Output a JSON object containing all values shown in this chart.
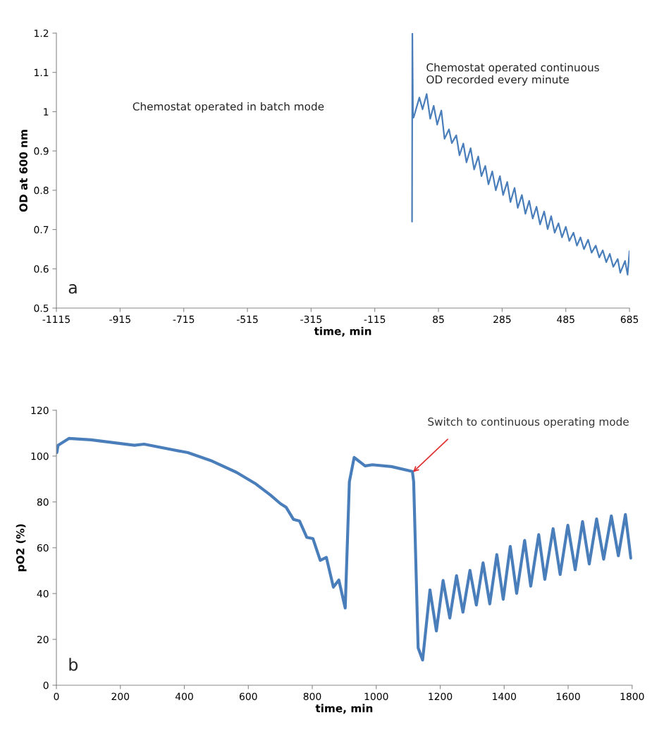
{
  "chart_data": [
    {
      "type": "line",
      "xlabel": "time, min",
      "ylabel": "OD at 600 nm",
      "xlim": [
        -1115,
        685
      ],
      "xticks": [
        -1115,
        -915,
        -715,
        -515,
        -315,
        -115,
        85,
        285,
        485,
        685
      ],
      "ylim": [
        0.5,
        1.2
      ],
      "yticks": [
        0.5,
        0.6,
        0.7,
        0.8,
        0.9,
        1,
        1.1,
        1.2
      ],
      "annotations": [
        "Chemostat operated in batch mode",
        "Chemostat operated continuous\nOD recorded every minute",
        "a"
      ],
      "series": [
        {
          "color": "#4a7ebb",
          "x": [
            2,
            3,
            5,
            7,
            25,
            35,
            48,
            59,
            70,
            81,
            94,
            104,
            118,
            127,
            141,
            151,
            163,
            173,
            186,
            197,
            210,
            220,
            232,
            242,
            254,
            265,
            278,
            288,
            301,
            311,
            324,
            334,
            347,
            358,
            370,
            381,
            393,
            404,
            417,
            428,
            439,
            450,
            462,
            473,
            485,
            496,
            509,
            520,
            531,
            542,
            555,
            566,
            579,
            590,
            601,
            612,
            623,
            634,
            648,
            656,
            671,
            679,
            685
          ],
          "values": [
            0.72,
            1.2,
            0.985,
            0.985,
            1.036,
            1.006,
            1.045,
            0.982,
            1.015,
            0.967,
            1.003,
            0.931,
            0.955,
            0.92,
            0.94,
            0.889,
            0.919,
            0.871,
            0.907,
            0.853,
            0.886,
            0.836,
            0.862,
            0.815,
            0.848,
            0.8,
            0.836,
            0.788,
            0.821,
            0.77,
            0.806,
            0.755,
            0.788,
            0.74,
            0.773,
            0.728,
            0.758,
            0.713,
            0.746,
            0.701,
            0.734,
            0.692,
            0.716,
            0.68,
            0.707,
            0.671,
            0.692,
            0.659,
            0.68,
            0.65,
            0.674,
            0.641,
            0.659,
            0.629,
            0.647,
            0.617,
            0.638,
            0.605,
            0.625,
            0.59,
            0.62,
            0.585,
            0.645
          ]
        }
      ]
    },
    {
      "type": "line",
      "xlabel": "time, min",
      "ylabel": "pO2 (%)",
      "xlim": [
        0,
        1800
      ],
      "xticks": [
        0,
        200,
        400,
        600,
        800,
        1000,
        1200,
        1400,
        1600,
        1800
      ],
      "ylim": [
        0,
        120
      ],
      "yticks": [
        0,
        20,
        40,
        60,
        80,
        100,
        120
      ],
      "annotations": [
        {
          "text": "Switch to continuous operating mode",
          "x": 1115,
          "y": 93
        },
        "b"
      ],
      "series": [
        {
          "color": "#4a7ebb",
          "x": [
            1.5,
            5,
            39,
            108,
            244,
            274,
            411,
            487,
            563,
            624,
            669,
            700,
            718,
            741,
            760,
            783,
            802,
            825,
            844,
            866,
            883,
            903,
            916,
            931,
            965,
            988,
            1048,
            1113,
            1117,
            1131,
            1145,
            1168,
            1188,
            1209,
            1230,
            1251,
            1271,
            1293,
            1313,
            1334,
            1355,
            1377,
            1397,
            1419,
            1439,
            1464,
            1483,
            1508,
            1527,
            1553,
            1575,
            1599,
            1622,
            1645,
            1666,
            1689,
            1711,
            1735,
            1757,
            1779,
            1796
          ],
          "values": [
            101.5,
            104.7,
            107.7,
            107.1,
            104.7,
            105.2,
            101.5,
            97.8,
            92.9,
            87.8,
            83.0,
            79.3,
            77.7,
            72.4,
            71.7,
            64.5,
            64.0,
            54.5,
            55.8,
            42.8,
            45.9,
            33.7,
            88.8,
            99.4,
            95.7,
            96.2,
            95.4,
            93.3,
            88.8,
            16.3,
            11,
            41.6,
            23.7,
            45.7,
            29.3,
            47.8,
            31.9,
            50.1,
            35.0,
            53.4,
            35.5,
            57.0,
            37.5,
            60.6,
            40.1,
            63.2,
            43.2,
            65.7,
            46.2,
            68.3,
            48.3,
            69.8,
            50.4,
            71.4,
            52.9,
            72.6,
            55.0,
            73.9,
            56.5,
            74.5,
            55.5
          ]
        }
      ]
    }
  ]
}
